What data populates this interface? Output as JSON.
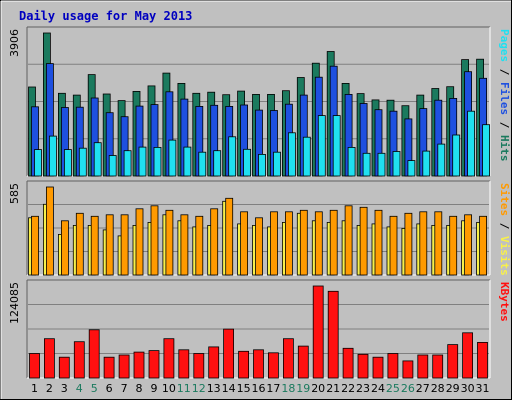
{
  "title": "Daily usage for May 2013",
  "colors": {
    "frame_bg": "#c0c0c0",
    "panel_bg": "#c0c0c0",
    "title": "#0000c0",
    "hits": "#1b7a5e",
    "files": "#1e50e0",
    "pages": "#20e0f0",
    "visits": "#f8f04a",
    "sites": "#ff9a00",
    "kbytes": "#ff1010",
    "weekend_label": "#1b7a5e",
    "weekday_label": "#000000",
    "separator": "#808080"
  },
  "chart_data": [
    {
      "type": "bar",
      "title": "Daily usage for May 2013",
      "categories": [
        "1",
        "2",
        "3",
        "4",
        "5",
        "6",
        "7",
        "8",
        "9",
        "10",
        "11",
        "12",
        "13",
        "14",
        "15",
        "16",
        "17",
        "18",
        "19",
        "20",
        "21",
        "22",
        "23",
        "24",
        "25",
        "26",
        "27",
        "28",
        "29",
        "30",
        "31"
      ],
      "ymax_label": "3906",
      "ylim": [
        0,
        3906
      ],
      "side_labels": [
        "Pages",
        "Files",
        "Hits"
      ],
      "series": [
        {
          "name": "Hits",
          "values": [
            2430,
            3906,
            2260,
            2210,
            2770,
            2240,
            2060,
            2310,
            2460,
            2810,
            2530,
            2260,
            2290,
            2220,
            2320,
            2230,
            2230,
            2330,
            2690,
            3080,
            3400,
            2530,
            2250,
            2080,
            2070,
            1920,
            2210,
            2390,
            2440,
            3180,
            3190
          ]
        },
        {
          "name": "Files",
          "values": [
            1890,
            3070,
            1870,
            1880,
            2130,
            1730,
            1620,
            1910,
            1950,
            2300,
            2100,
            1900,
            1930,
            1900,
            1940,
            1800,
            1790,
            1960,
            2210,
            2700,
            3000,
            2230,
            1980,
            1810,
            1770,
            1560,
            1840,
            2070,
            2120,
            2850,
            2670
          ]
        },
        {
          "name": "Pages",
          "values": [
            720,
            1090,
            720,
            760,
            910,
            560,
            690,
            790,
            780,
            980,
            790,
            650,
            690,
            1070,
            730,
            590,
            650,
            1180,
            1060,
            1650,
            1650,
            780,
            620,
            620,
            670,
            420,
            680,
            870,
            1120,
            1770,
            1400
          ]
        }
      ]
    },
    {
      "type": "bar",
      "categories": [
        "1",
        "2",
        "3",
        "4",
        "5",
        "6",
        "7",
        "8",
        "9",
        "10",
        "11",
        "12",
        "13",
        "14",
        "15",
        "16",
        "17",
        "18",
        "19",
        "20",
        "21",
        "22",
        "23",
        "24",
        "25",
        "26",
        "27",
        "28",
        "29",
        "30",
        "31"
      ],
      "ymax_label": "585",
      "ylim": [
        0,
        585
      ],
      "side_labels": [
        "Sites",
        "Visits"
      ],
      "series": [
        {
          "name": "Visits",
          "values": [
            380,
            470,
            270,
            330,
            330,
            300,
            260,
            330,
            350,
            400,
            360,
            320,
            330,
            490,
            340,
            330,
            320,
            350,
            410,
            360,
            350,
            360,
            330,
            340,
            320,
            310,
            340,
            330,
            330,
            360,
            350
          ]
        },
        {
          "name": "Sites",
          "values": [
            390,
            585,
            360,
            410,
            390,
            400,
            400,
            440,
            460,
            430,
            400,
            390,
            440,
            510,
            420,
            380,
            420,
            420,
            430,
            420,
            430,
            460,
            450,
            430,
            390,
            410,
            420,
            420,
            390,
            400,
            390
          ]
        }
      ]
    },
    {
      "type": "bar",
      "categories": [
        "1",
        "2",
        "3",
        "4",
        "5",
        "6",
        "7",
        "8",
        "9",
        "10",
        "11",
        "12",
        "13",
        "14",
        "15",
        "16",
        "17",
        "18",
        "19",
        "20",
        "21",
        "22",
        "23",
        "24",
        "25",
        "26",
        "27",
        "28",
        "29",
        "30",
        "31"
      ],
      "ymax_label": "124085",
      "ylim": [
        0,
        124085
      ],
      "side_labels": [
        "KBytes"
      ],
      "series": [
        {
          "name": "KBytes",
          "values": [
            33000,
            53000,
            28000,
            49000,
            65000,
            28000,
            31000,
            35000,
            37000,
            53000,
            38000,
            33000,
            42000,
            66000,
            36000,
            38000,
            34000,
            53000,
            43000,
            124085,
            117000,
            40000,
            32000,
            28000,
            33000,
            23000,
            31000,
            31000,
            45000,
            61000,
            48000
          ]
        }
      ]
    }
  ]
}
